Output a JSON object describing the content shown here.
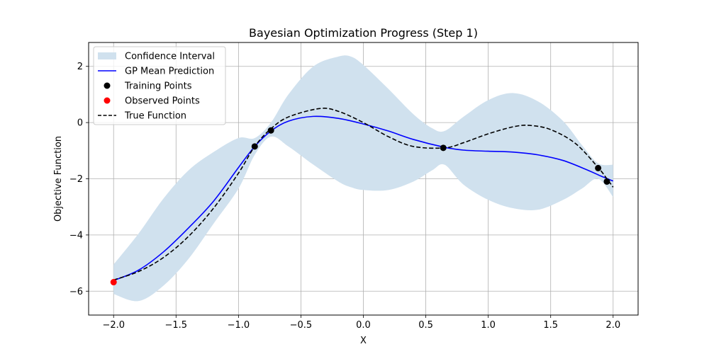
{
  "chart_data": {
    "type": "line",
    "title": "Bayesian Optimization Progress (Step 1)",
    "xlabel": "X",
    "ylabel": "Objective Function",
    "xlim": [
      -2.2,
      2.2
    ],
    "ylim": [
      -6.85,
      2.85
    ],
    "xticks": [
      -2.0,
      -1.5,
      -1.0,
      -0.5,
      0.0,
      0.5,
      1.0,
      1.5,
      2.0
    ],
    "xtick_labels": [
      "−2.0",
      "−1.5",
      "−1.0",
      "−0.5",
      "0.0",
      "0.5",
      "1.0",
      "1.5",
      "2.0"
    ],
    "yticks": [
      -6,
      -4,
      -2,
      0,
      2
    ],
    "ytick_labels": [
      "−6",
      "−4",
      "−2",
      "0",
      "2"
    ],
    "grid": true,
    "legend_position": "upper-left",
    "legend": [
      {
        "label": "Confidence Interval",
        "kind": "patch"
      },
      {
        "label": "GP Mean Prediction",
        "kind": "line"
      },
      {
        "label": "Training Points",
        "kind": "marker-black"
      },
      {
        "label": "Observed Points",
        "kind": "marker-red"
      },
      {
        "label": "True Function",
        "kind": "dashed"
      }
    ],
    "colors": {
      "confidence": "#d0e1ee",
      "mean": "#0000ff",
      "training": "#000000",
      "observed": "#ff0000",
      "true_function": "#000000",
      "grid": "#b0b0b0"
    },
    "series": [
      {
        "name": "GP Mean Prediction",
        "x": [
          -2.0,
          -1.8,
          -1.6,
          -1.4,
          -1.2,
          -1.0,
          -0.87,
          -0.74,
          -0.6,
          -0.4,
          -0.2,
          0.0,
          0.2,
          0.4,
          0.65,
          0.8,
          1.0,
          1.2,
          1.4,
          1.6,
          1.8,
          1.9,
          2.0
        ],
        "y": [
          -5.62,
          -5.25,
          -4.6,
          -3.75,
          -2.8,
          -1.6,
          -0.85,
          -0.3,
          0.05,
          0.22,
          0.15,
          -0.05,
          -0.3,
          -0.6,
          -0.88,
          -0.98,
          -1.02,
          -1.05,
          -1.15,
          -1.35,
          -1.7,
          -1.9,
          -2.08
        ]
      },
      {
        "name": "True Function",
        "x": [
          -2.0,
          -1.8,
          -1.6,
          -1.4,
          -1.2,
          -1.0,
          -0.87,
          -0.74,
          -0.6,
          -0.35,
          -0.2,
          0.0,
          0.2,
          0.4,
          0.65,
          0.8,
          1.0,
          1.2,
          1.33,
          1.5,
          1.7,
          1.88,
          1.95,
          2.0
        ],
        "y": [
          -5.6,
          -5.3,
          -4.8,
          -4.05,
          -3.05,
          -1.8,
          -0.85,
          -0.22,
          0.2,
          0.5,
          0.4,
          0.0,
          -0.5,
          -0.85,
          -0.9,
          -0.72,
          -0.4,
          -0.15,
          -0.1,
          -0.25,
          -0.75,
          -1.6,
          -2.0,
          -2.3
        ]
      },
      {
        "name": "Confidence Interval",
        "x": [
          -2.0,
          -1.8,
          -1.6,
          -1.4,
          -1.2,
          -1.0,
          -0.87,
          -0.74,
          -0.6,
          -0.4,
          -0.2,
          -0.1,
          0.0,
          0.2,
          0.4,
          0.55,
          0.65,
          0.8,
          1.0,
          1.2,
          1.4,
          1.6,
          1.75,
          1.88,
          2.0
        ],
        "upper": [
          -5.05,
          -3.95,
          -2.7,
          -1.7,
          -1.05,
          -0.55,
          -0.55,
          0.0,
          1.0,
          2.0,
          2.35,
          2.35,
          2.05,
          1.2,
          0.3,
          -0.2,
          -0.3,
          0.2,
          0.8,
          1.05,
          0.75,
          0.05,
          -0.8,
          -1.45,
          -1.5
        ],
        "lower": [
          -6.1,
          -6.35,
          -5.8,
          -4.85,
          -3.6,
          -2.35,
          -1.15,
          -0.5,
          -0.85,
          -1.5,
          -2.1,
          -2.3,
          -2.4,
          -2.4,
          -2.1,
          -1.7,
          -1.5,
          -2.2,
          -2.75,
          -3.05,
          -3.1,
          -2.75,
          -2.35,
          -2.0,
          -2.65
        ]
      },
      {
        "name": "Training Points",
        "x": [
          -0.87,
          -0.74,
          0.64,
          1.88,
          1.95
        ],
        "y": [
          -0.85,
          -0.28,
          -0.9,
          -1.62,
          -2.1
        ]
      },
      {
        "name": "Observed Points",
        "x": [
          -2.0
        ],
        "y": [
          -5.68
        ]
      }
    ]
  }
}
